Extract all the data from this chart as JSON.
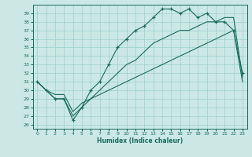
{
  "xlabel": "Humidex (Indice chaleur)",
  "bg_color": "#cce8e4",
  "grid_color": "#99d0cc",
  "line_color": "#1a6b5a",
  "xlim": [
    -0.5,
    23.5
  ],
  "ylim": [
    25.5,
    40.0
  ],
  "yticks": [
    26,
    27,
    28,
    29,
    30,
    31,
    32,
    33,
    34,
    35,
    36,
    37,
    38,
    39
  ],
  "xticks": [
    0,
    1,
    2,
    3,
    4,
    5,
    6,
    7,
    8,
    9,
    10,
    11,
    12,
    13,
    14,
    15,
    16,
    17,
    18,
    19,
    20,
    21,
    22,
    23
  ],
  "line1_x": [
    0,
    1,
    2,
    3,
    4,
    5,
    6,
    7,
    8,
    9,
    10,
    11,
    12,
    13,
    14,
    15,
    16,
    17,
    18,
    19,
    20,
    21,
    22,
    23
  ],
  "line1_y": [
    31,
    30,
    29,
    29,
    26.5,
    28,
    30,
    31,
    33,
    35,
    36,
    37,
    37.5,
    38.5,
    39.5,
    39.5,
    39,
    39.5,
    38.5,
    39,
    38,
    38,
    37,
    32
  ],
  "line2_x": [
    0,
    1,
    2,
    3,
    4,
    5,
    6,
    7,
    8,
    9,
    10,
    11,
    12,
    13,
    14,
    15,
    16,
    17,
    18,
    19,
    20,
    21,
    22,
    23
  ],
  "line2_y": [
    31,
    30,
    29,
    29,
    27,
    28,
    29,
    30,
    31,
    32,
    33,
    33.5,
    34.5,
    35.5,
    36,
    36.5,
    37,
    37,
    37.5,
    38,
    38,
    38.5,
    38.5,
    31.5
  ],
  "line3_x": [
    0,
    1,
    2,
    3,
    4,
    5,
    6,
    7,
    8,
    9,
    10,
    11,
    12,
    13,
    14,
    15,
    16,
    17,
    18,
    19,
    20,
    21,
    22,
    23
  ],
  "line3_y": [
    31,
    30,
    29.5,
    29.5,
    27.5,
    28.5,
    29,
    29.5,
    30,
    30.5,
    31,
    31.5,
    32,
    32.5,
    33,
    33.5,
    34,
    34.5,
    35,
    35.5,
    36,
    36.5,
    37,
    31
  ]
}
